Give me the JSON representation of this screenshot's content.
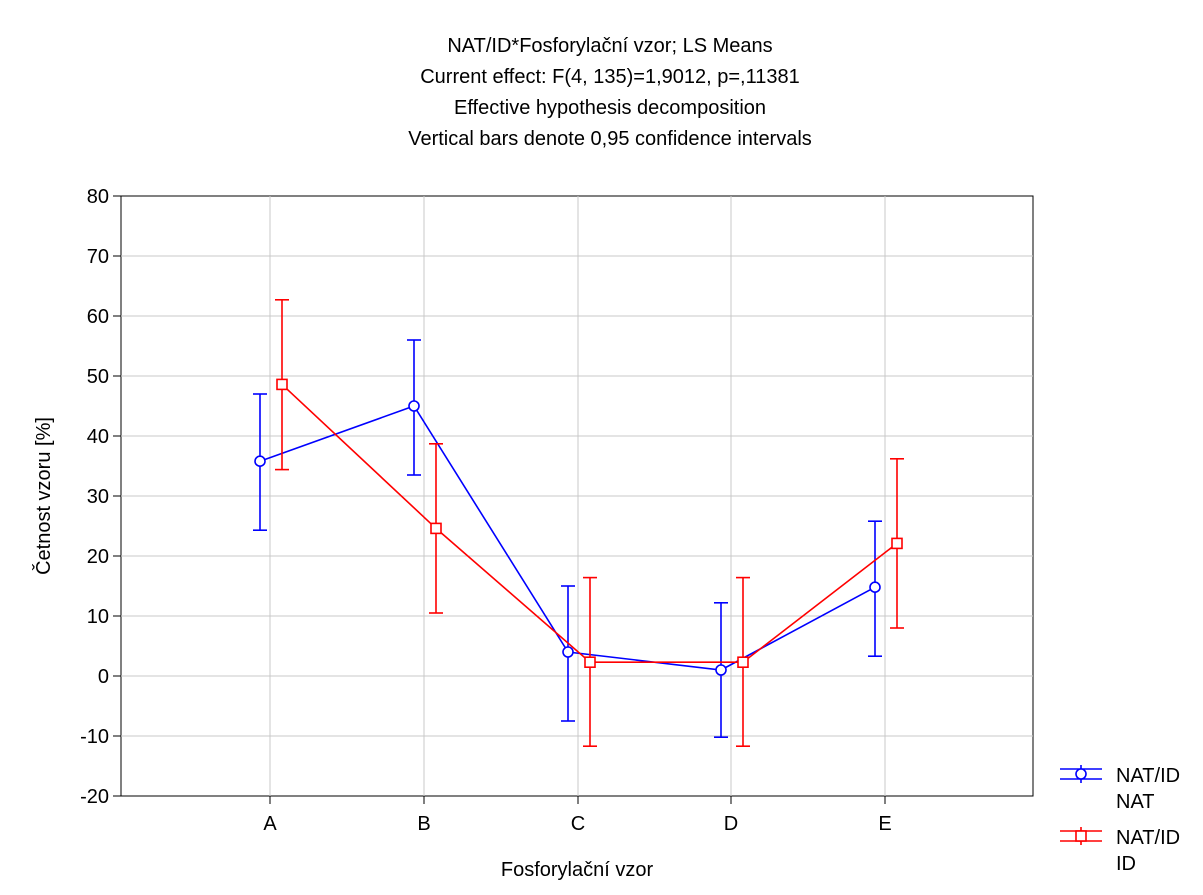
{
  "chart_data": {
    "type": "line",
    "title_lines": [
      "NAT/ID*Fosforylační vzor; LS Means",
      "Current effect: F(4, 135)=1,9012, p=,11381",
      "Effective hypothesis decomposition",
      "Vertical bars denote 0,95 confidence intervals"
    ],
    "xlabel": "Fosforylační vzor",
    "ylabel": "Četnost vzoru [%]",
    "categories": [
      "A",
      "B",
      "C",
      "D",
      "E"
    ],
    "ylim": [
      -20,
      80
    ],
    "yticks": [
      -20,
      -10,
      0,
      10,
      20,
      30,
      40,
      50,
      60,
      70,
      80
    ],
    "grid": true,
    "legend_position": "bottom-right",
    "series": [
      {
        "legend_line1": "NAT/ID",
        "legend_line2": "NAT",
        "marker": "circle",
        "color": "#0000ff",
        "values": [
          35.8,
          45.0,
          4.0,
          1.0,
          14.8
        ],
        "ci_low": [
          24.3,
          33.5,
          -7.5,
          -10.2,
          3.3
        ],
        "ci_high": [
          47.0,
          56.0,
          15.0,
          12.2,
          25.8
        ]
      },
      {
        "legend_line1": "NAT/ID",
        "legend_line2": "ID",
        "marker": "square",
        "color": "#ff0000",
        "values": [
          48.6,
          24.6,
          2.3,
          2.3,
          22.1
        ],
        "ci_low": [
          34.4,
          10.5,
          -11.7,
          -11.7,
          8.0
        ],
        "ci_high": [
          62.7,
          38.7,
          16.4,
          16.4,
          36.2
        ]
      }
    ]
  }
}
